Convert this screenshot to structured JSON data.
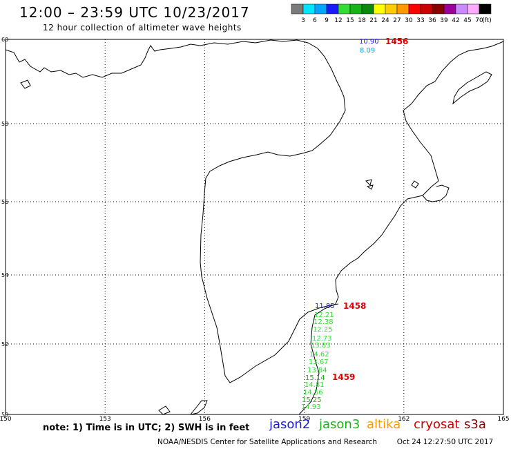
{
  "header": {
    "title": "12:00 – 23:59 UTC 10/23/2017",
    "subtitle": "12 hour collection of altimeter wave heights"
  },
  "legend": {
    "unit": "(ft)",
    "bins": [
      {
        "label": "3",
        "color": "#7b7b7b"
      },
      {
        "label": "6",
        "color": "#00e5ff"
      },
      {
        "label": "9",
        "color": "#00a5ff"
      },
      {
        "label": "12",
        "color": "#1a1aff"
      },
      {
        "label": "15",
        "color": "#33dd33"
      },
      {
        "label": "18",
        "color": "#19b219"
      },
      {
        "label": "21",
        "color": "#0a8a0a"
      },
      {
        "label": "24",
        "color": "#ffff00"
      },
      {
        "label": "27",
        "color": "#ffcc00"
      },
      {
        "label": "30",
        "color": "#ff9900"
      },
      {
        "label": "33",
        "color": "#ff0000"
      },
      {
        "label": "36",
        "color": "#cc0000"
      },
      {
        "label": "39",
        "color": "#880000"
      },
      {
        "label": "42",
        "color": "#990099"
      },
      {
        "label": "45",
        "color": "#cc88ff"
      },
      {
        "label": "70",
        "color": "#ffaaff"
      },
      {
        "label": "",
        "color": "#000000"
      }
    ]
  },
  "map": {
    "lon_range": [
      150,
      165
    ],
    "lat_range": [
      50,
      60
    ],
    "lon_ticks": [
      "150",
      "153",
      "156",
      "159",
      "162",
      "165"
    ],
    "lat_ticks": [
      "60",
      "58",
      "56",
      "54",
      "52",
      "50"
    ],
    "times": [
      {
        "text": "1456",
        "color": "#e00000"
      },
      {
        "text": "1458",
        "color": "#e00000"
      },
      {
        "text": "1459",
        "color": "#e00000"
      }
    ],
    "observations": [
      {
        "text": "10.90",
        "color": "#1a1aff"
      },
      {
        "text": "8.09",
        "color": "#00a5ff"
      },
      {
        "text": "11.85",
        "color": "#1a1aff"
      },
      {
        "text": "12.21",
        "color": "#33dd33"
      },
      {
        "text": "12.38",
        "color": "#33dd33"
      },
      {
        "text": "12.25",
        "color": "#33dd33"
      },
      {
        "text": "12.73",
        "color": "#33dd33"
      },
      {
        "text": "13.83",
        "color": "#33dd33"
      },
      {
        "text": "14.62",
        "color": "#33dd33"
      },
      {
        "text": "13.67",
        "color": "#33dd33"
      },
      {
        "text": "13.84",
        "color": "#33dd33"
      },
      {
        "text": "15.14",
        "color": "#19b219"
      },
      {
        "text": "14.81",
        "color": "#33dd33"
      },
      {
        "text": "14.56",
        "color": "#33dd33"
      },
      {
        "text": "15.25",
        "color": "#19b219"
      },
      {
        "text": "14.93",
        "color": "#33dd33"
      }
    ]
  },
  "footer": {
    "note": "note: 1) Time is in UTC; 2) SWH is in feet",
    "satellites": [
      {
        "name": "jason2",
        "color": "#1a1acc"
      },
      {
        "name": "jason3",
        "color": "#19b219"
      },
      {
        "name": "altika",
        "color": "#ff9900"
      },
      {
        "name": "cryosat",
        "color": "#cc0000"
      },
      {
        "name": "s3a",
        "color": "#880000"
      }
    ],
    "credit": "NOAA/NESDIS Center for Satellite Applications and Research",
    "timestamp": "Oct 24 12:27:50 UTC 2017"
  }
}
